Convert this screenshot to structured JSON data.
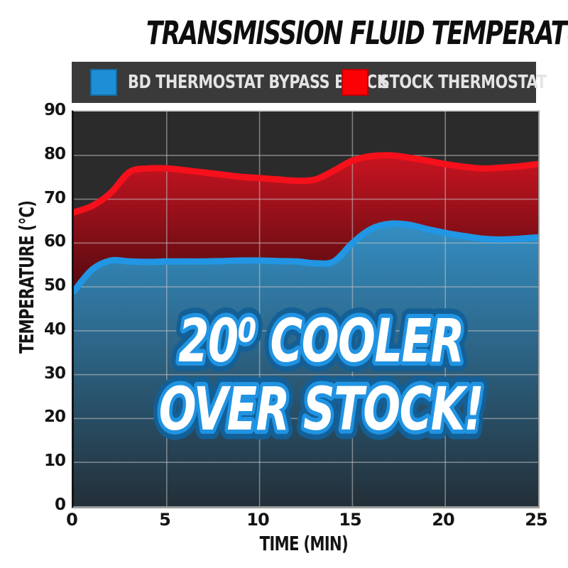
{
  "title": "TRANSMISSION FLUID TEMPERATURE",
  "legend": {
    "bg": "#3a3a3a",
    "items": [
      {
        "label": "BD THERMOSTAT BYPASS BLOCK",
        "color": "#1e8fd6"
      },
      {
        "label": "STOCK THERMOSTAT",
        "color": "#fb0005"
      }
    ]
  },
  "overlay": {
    "line1": "20⁰ COOLER",
    "line2": "OVER STOCK!",
    "fill": "#ffffff",
    "stroke": "#2093e2",
    "halo": "#135f96"
  },
  "chart_data": {
    "type": "area",
    "title": "TRANSMISSION FLUID TEMPERATURE",
    "xlabel": "TIME (MIN)",
    "ylabel": "TEMPERATURE (°C)",
    "xlim": [
      0,
      25
    ],
    "ylim": [
      0,
      90
    ],
    "grid": true,
    "grid_color": "#c3c3c3",
    "plot_bg": "#2b2b2b",
    "legend_position": "top",
    "x_ticks": [
      "0",
      "5",
      "10",
      "15",
      "20",
      "25"
    ],
    "y_ticks": [
      "90",
      "80",
      "70",
      "60",
      "50",
      "40",
      "30",
      "20",
      "10",
      "0"
    ],
    "x": [
      0,
      1,
      2,
      3,
      4,
      5,
      6,
      7,
      8,
      9,
      10,
      11,
      12,
      13,
      14,
      15,
      16,
      17,
      18,
      19,
      20,
      21,
      22,
      23,
      24,
      25
    ],
    "series": [
      {
        "name": "STOCK THERMOSTAT",
        "color": "#f5101b",
        "fill_top": "#d61523",
        "fill_bottom": "#230708",
        "values": [
          67,
          68.5,
          71.5,
          76.2,
          77,
          77,
          76.6,
          76.1,
          75.6,
          75.1,
          74.8,
          74.5,
          74.2,
          74.5,
          76.5,
          78.8,
          79.8,
          80,
          79.5,
          78.8,
          78,
          77.4,
          77,
          77.2,
          77.5,
          78
        ]
      },
      {
        "name": "BD THERMOSTAT BYPASS BLOCK",
        "color": "#2196e4",
        "fill_top": "#3490c6",
        "fill_bottom": "#232f38",
        "values": [
          49,
          54,
          56,
          55.8,
          55.7,
          55.8,
          55.8,
          55.8,
          55.9,
          56,
          56,
          55.9,
          55.8,
          55.4,
          55.8,
          60,
          63.2,
          64.4,
          64.2,
          63.2,
          62.3,
          61.6,
          61,
          60.8,
          61,
          61.3
        ]
      }
    ]
  }
}
